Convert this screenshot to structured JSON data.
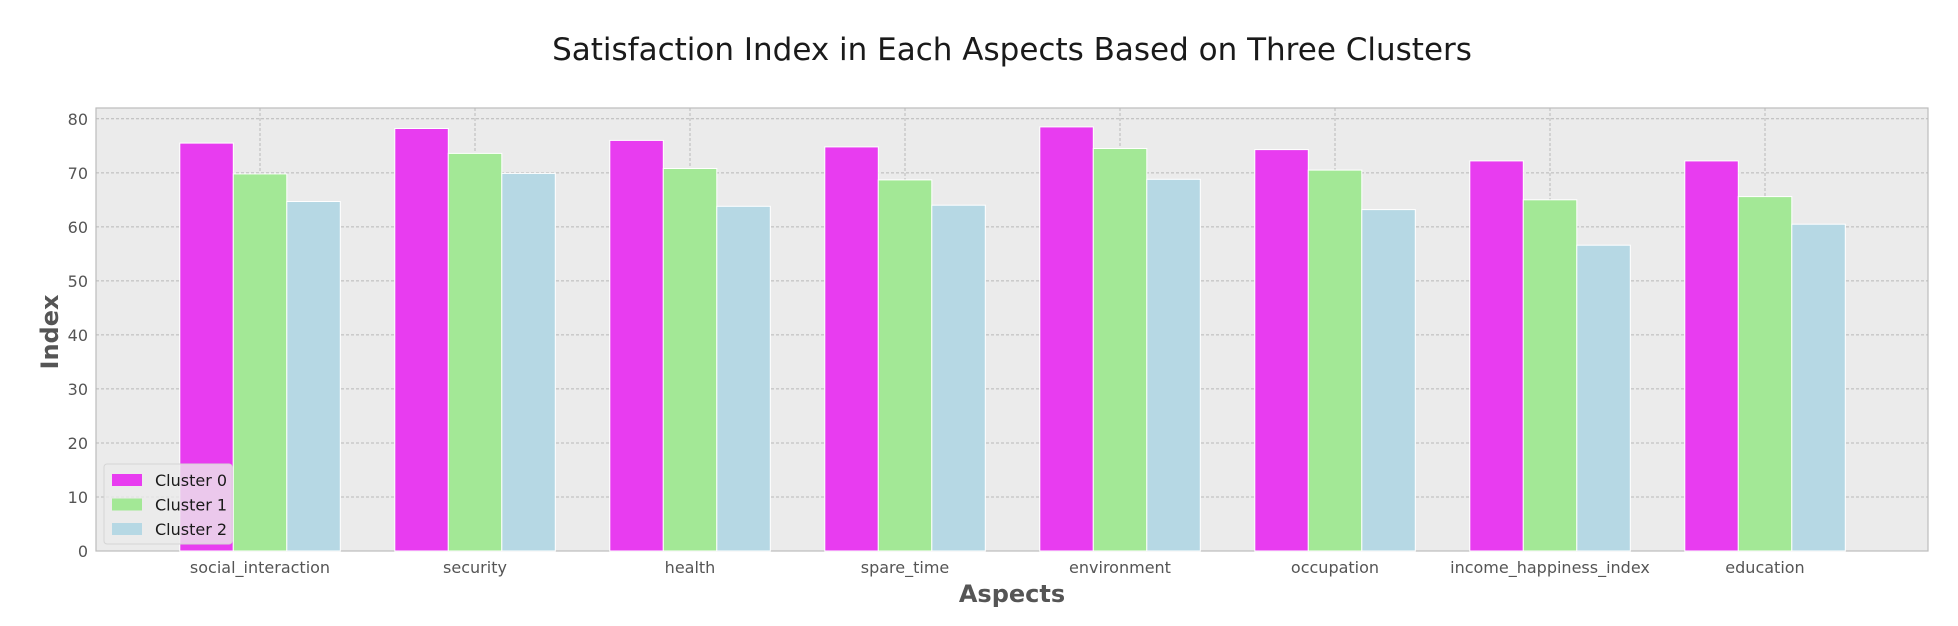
{
  "chart_data": {
    "type": "bar",
    "title": "Satisfaction Index in Each Aspects Based on Three Clusters",
    "xlabel": "Aspects",
    "ylabel": "Index",
    "categories": [
      "social_interaction",
      "security",
      "health",
      "spare_time",
      "environment",
      "occupation",
      "income_happiness_index",
      "education"
    ],
    "series": [
      {
        "name": "Cluster 0",
        "color": "#e83cf0",
        "values": [
          75.5,
          78.2,
          76.0,
          74.8,
          78.5,
          74.3,
          72.2,
          72.2
        ]
      },
      {
        "name": "Cluster 1",
        "color": "#a3e896",
        "values": [
          69.8,
          73.6,
          70.8,
          68.7,
          74.5,
          70.5,
          65.0,
          65.6
        ]
      },
      {
        "name": "Cluster 2",
        "color": "#b6d8e4",
        "values": [
          64.7,
          69.9,
          63.8,
          64.0,
          68.8,
          63.2,
          56.6,
          60.5
        ]
      }
    ],
    "ylim": [
      0,
      80
    ],
    "yticks": [
      0,
      10,
      20,
      30,
      40,
      50,
      60,
      70,
      80
    ],
    "grid": true,
    "legend_position": "lower-left",
    "background": "#ebebeb"
  }
}
